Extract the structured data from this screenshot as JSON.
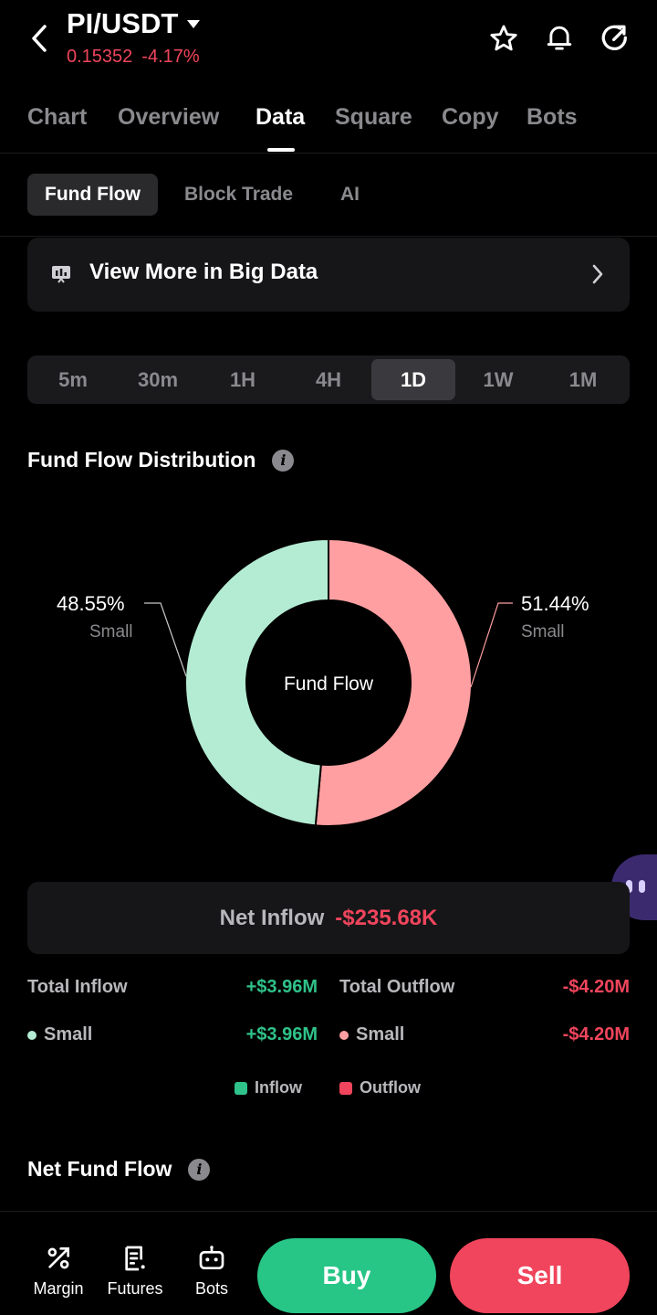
{
  "header": {
    "pair": "PI/USDT",
    "price": "0.15352",
    "change": "-4.17%"
  },
  "tabs": [
    "Chart",
    "Overview",
    "Data",
    "Square",
    "Copy",
    "Bots"
  ],
  "active_tab": "Data",
  "subtabs": [
    "Fund Flow",
    "Block Trade",
    "AI"
  ],
  "active_subtab": "Fund Flow",
  "big_data": {
    "label": "View More in Big Data"
  },
  "timeframes": [
    "5m",
    "30m",
    "1H",
    "4H",
    "1D",
    "1W",
    "1M"
  ],
  "active_timeframe": "1D",
  "distribution": {
    "title": "Fund Flow Distribution",
    "center_label": "Fund Flow",
    "left_pct": "48.55%",
    "left_sub": "Small",
    "right_pct": "51.44%",
    "right_sub": "Small"
  },
  "chart_data": {
    "type": "pie",
    "title": "Fund Flow Distribution",
    "categories": [
      "Small",
      "Small"
    ],
    "values": [
      48.55,
      51.44
    ],
    "colors": [
      "#b3ecd3",
      "#ff9fa1"
    ]
  },
  "net_inflow": {
    "label": "Net Inflow",
    "value": "-$235.68K"
  },
  "totals": {
    "inflow_label": "Total Inflow",
    "inflow_value": "+$3.96M",
    "outflow_label": "Total Outflow",
    "outflow_value": "-$4.20M",
    "small_in_label": "Small",
    "small_in_value": "+$3.96M",
    "small_out_label": "Small",
    "small_out_value": "-$4.20M"
  },
  "legend": {
    "inflow": "Inflow",
    "outflow": "Outflow"
  },
  "net_fund_flow": {
    "title": "Net Fund Flow"
  },
  "bottom_nav": {
    "margin": "Margin",
    "futures": "Futures",
    "bots": "Bots"
  },
  "actions": {
    "buy": "Buy",
    "sell": "Sell"
  },
  "colors": {
    "down_red": "#f0455c",
    "up_green": "#2fc28a",
    "inflow_slice": "#b3ecd3",
    "outflow_slice": "#ff9fa1"
  }
}
